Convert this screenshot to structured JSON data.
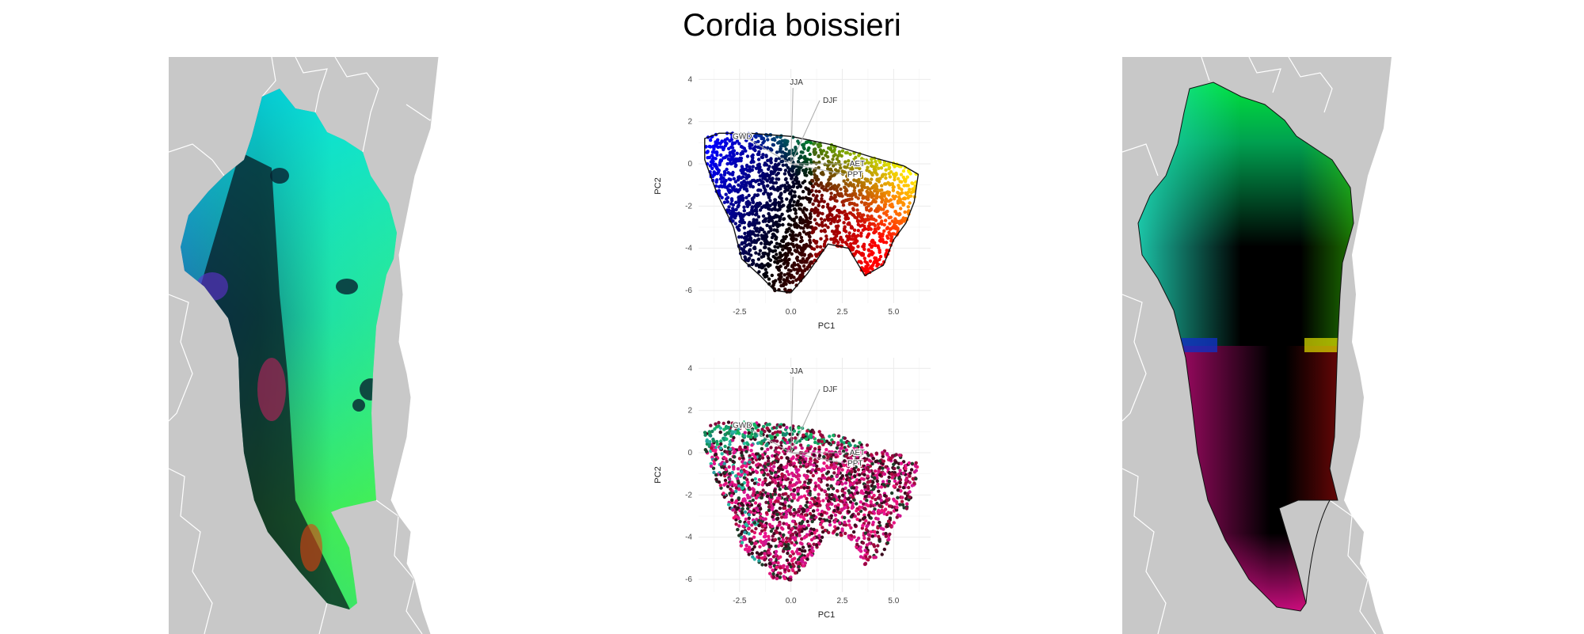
{
  "title": "Cordia boissieri",
  "colors": {
    "land": "#c8c8c8",
    "borders": "#ffffff",
    "outline": "#111111",
    "grid": "#ebebeb",
    "arrow": "#b0b0b0"
  },
  "chart_data": [
    {
      "type": "scatter",
      "panel": "top",
      "xlabel": "PC1",
      "ylabel": "PC2",
      "xticks": [
        "-2.5",
        "0.0",
        "2.5",
        "5.0"
      ],
      "yticks": [
        "4",
        "2",
        "0",
        "-2",
        "-4",
        "-6"
      ],
      "xlim": [
        -4.5,
        6.8
      ],
      "ylim": [
        -6.6,
        4.5
      ],
      "grid": true,
      "loadings": [
        {
          "label": "JJA",
          "x": 0.1,
          "y": 3.6
        },
        {
          "label": "DJF",
          "x": 1.4,
          "y": 3.0
        },
        {
          "label": "GWD",
          "x": -2.3,
          "y": 1.3
        },
        {
          "label": "AET",
          "x": 2.7,
          "y": 0.0
        },
        {
          "label": "PPT",
          "x": 2.6,
          "y": -0.5
        }
      ],
      "hull": [
        [
          -4.2,
          1.2
        ],
        [
          -3.5,
          1.45
        ],
        [
          -2,
          1.45
        ],
        [
          0,
          1.3
        ],
        [
          2,
          0.9
        ],
        [
          4,
          0.3
        ],
        [
          5.5,
          -0.1
        ],
        [
          6.2,
          -0.5
        ],
        [
          6.0,
          -1.8
        ],
        [
          5.6,
          -2.8
        ],
        [
          5.0,
          -3.6
        ],
        [
          4.5,
          -4.8
        ],
        [
          3.6,
          -5.3
        ],
        [
          2.8,
          -4.0
        ],
        [
          1.8,
          -3.8
        ],
        [
          0.8,
          -5.2
        ],
        [
          0,
          -6.1
        ],
        [
          -0.8,
          -6.0
        ],
        [
          -1.5,
          -5.3
        ],
        [
          -2.4,
          -4.5
        ],
        [
          -2.8,
          -3.0
        ],
        [
          -3.6,
          -1.4
        ],
        [
          -4.2,
          0.2
        ]
      ],
      "coloring": "rgb-from-pca"
    },
    {
      "type": "scatter",
      "panel": "bottom",
      "xlabel": "PC1",
      "ylabel": "PC2",
      "xticks": [
        "-2.5",
        "0.0",
        "2.5",
        "5.0"
      ],
      "yticks": [
        "4",
        "2",
        "0",
        "-2",
        "-4",
        "-6"
      ],
      "xlim": [
        -4.5,
        6.8
      ],
      "ylim": [
        -6.6,
        4.5
      ],
      "grid": true,
      "loadings": [
        {
          "label": "JJA",
          "x": 0.1,
          "y": 3.6
        },
        {
          "label": "DJF",
          "x": 1.4,
          "y": 3.0
        },
        {
          "label": "GWD",
          "x": -2.3,
          "y": 1.3
        },
        {
          "label": "AET",
          "x": 2.7,
          "y": 0.0
        },
        {
          "label": "PPT",
          "x": 2.6,
          "y": -0.5
        }
      ],
      "hull": [
        [
          -4.2,
          1.2
        ],
        [
          -3.5,
          1.45
        ],
        [
          -2,
          1.45
        ],
        [
          0,
          1.3
        ],
        [
          2,
          0.9
        ],
        [
          4,
          0.3
        ],
        [
          5.5,
          -0.1
        ],
        [
          6.2,
          -0.5
        ],
        [
          6.0,
          -1.8
        ],
        [
          5.6,
          -2.8
        ],
        [
          5.0,
          -3.6
        ],
        [
          4.5,
          -4.8
        ],
        [
          3.6,
          -5.3
        ],
        [
          2.8,
          -4.0
        ],
        [
          1.8,
          -3.8
        ],
        [
          0.8,
          -5.2
        ],
        [
          0,
          -6.1
        ],
        [
          -0.8,
          -6.0
        ],
        [
          -1.5,
          -5.3
        ],
        [
          -2.4,
          -4.5
        ],
        [
          -2.8,
          -3.0
        ],
        [
          -3.6,
          -1.4
        ],
        [
          -4.2,
          0.2
        ]
      ],
      "coloring": "rgb-from-geography"
    }
  ]
}
